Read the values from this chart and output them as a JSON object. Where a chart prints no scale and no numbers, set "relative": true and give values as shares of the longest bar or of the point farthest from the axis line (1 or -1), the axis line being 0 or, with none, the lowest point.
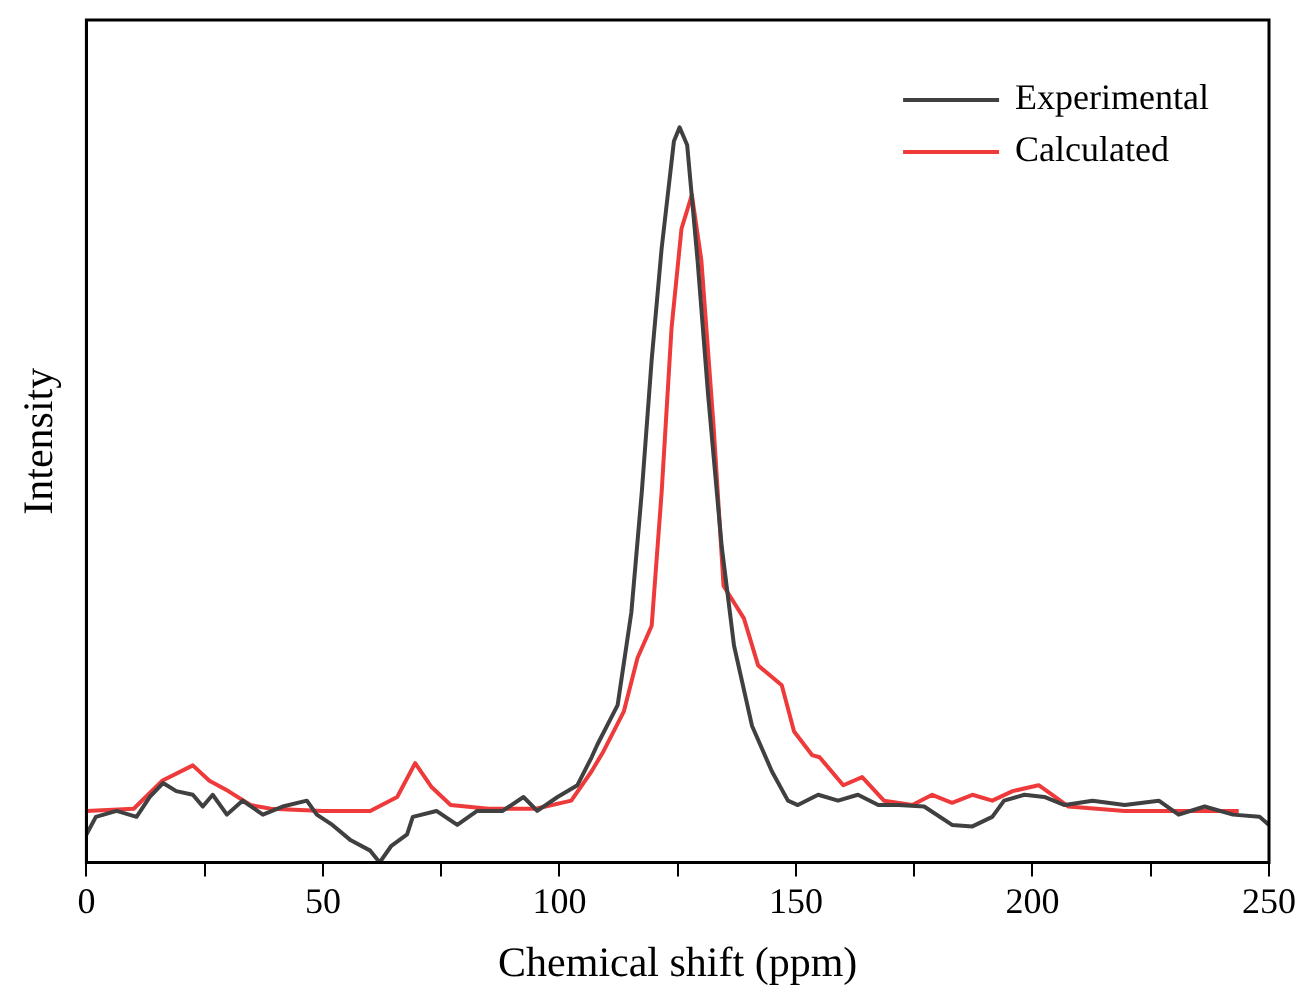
{
  "chart_data": {
    "type": "line",
    "relative": true,
    "xlabel": "Chemical shift (ppm)",
    "ylabel": "Intensity",
    "xlim": [
      0,
      250
    ],
    "xticks": [
      0,
      {
        "value": 25,
        "label": null
      },
      50,
      {
        "value": 75,
        "label": null
      },
      100,
      {
        "value": 125,
        "label": null
      },
      150,
      {
        "value": 175,
        "label": null
      },
      200,
      {
        "value": 225,
        "label": null
      },
      250
    ],
    "legend": "top right",
    "grid": false,
    "marker": "none",
    "line_style": "solid",
    "series": [
      {
        "name": "Experimental",
        "color": "#404040",
        "x": [
          0,
          2,
          6.4,
          10.6,
          13.4,
          16.2,
          19,
          22.5,
          24.6,
          26.7,
          29.7,
          33,
          37.3,
          41.5,
          46.6,
          48.7,
          52,
          55.9,
          60,
          62,
          64.4,
          67.8,
          69,
          74,
          78.4,
          82.6,
          88,
          92.4,
          95.3,
          99.6,
          103.8,
          106.8,
          108,
          112.3,
          115.2,
          117.4,
          119.5,
          121.6,
          122.9,
          124.2,
          125.4,
          127,
          129.2,
          131.4,
          134.3,
          136.9,
          140.7,
          144.9,
          148.3,
          150.4,
          154.7,
          158.9,
          163.1,
          167.4,
          171.6,
          177.1,
          183,
          187.3,
          191.5,
          194,
          198.3,
          202.5,
          206.8,
          212.7,
          219.5,
          226.7,
          230.9,
          236.4,
          242.4,
          248,
          250
        ],
        "values": [
          0.038,
          0.062,
          0.07,
          0.062,
          0.089,
          0.108,
          0.097,
          0.092,
          0.076,
          0.092,
          0.065,
          0.084,
          0.065,
          0.076,
          0.084,
          0.065,
          0.051,
          0.03,
          0.016,
          0,
          0.022,
          0.038,
          0.062,
          0.07,
          0.051,
          0.07,
          0.07,
          0.089,
          0.07,
          0.089,
          0.105,
          0.143,
          0.16,
          0.214,
          0.34,
          0.503,
          0.684,
          0.835,
          0.908,
          0.981,
          1,
          0.976,
          0.819,
          0.638,
          0.43,
          0.295,
          0.186,
          0.124,
          0.084,
          0.078,
          0.092,
          0.084,
          0.092,
          0.078,
          0.078,
          0.076,
          0.051,
          0.049,
          0.062,
          0.084,
          0.092,
          0.089,
          0.078,
          0.084,
          0.078,
          0.084,
          0.065,
          0.076,
          0.065,
          0.062,
          0.051
        ]
      },
      {
        "name": "Calculated",
        "color": "#ee3a3a",
        "x": [
          0,
          10,
          16,
          22.5,
          26,
          30,
          34.7,
          39,
          50,
          60,
          65.7,
          69.5,
          72.9,
          77,
          85,
          95,
          102.5,
          106.8,
          109.3,
          113.6,
          116.5,
          119.5,
          121.6,
          123.7,
          125.8,
          128,
          130,
          132.6,
          134.7,
          139,
          142,
          147,
          149.6,
          153.4,
          155,
          160,
          164,
          168.6,
          174.6,
          178.8,
          183,
          187.3,
          191.5,
          195.8,
          201.3,
          204.2,
          207.6,
          219.5,
          243.6
        ],
        "values": [
          0.07,
          0.073,
          0.111,
          0.132,
          0.111,
          0.097,
          0.078,
          0.073,
          0.07,
          0.07,
          0.089,
          0.135,
          0.103,
          0.078,
          0.073,
          0.073,
          0.084,
          0.124,
          0.151,
          0.205,
          0.278,
          0.322,
          0.503,
          0.727,
          0.862,
          0.908,
          0.819,
          0.592,
          0.376,
          0.332,
          0.268,
          0.241,
          0.178,
          0.146,
          0.143,
          0.105,
          0.116,
          0.084,
          0.078,
          0.092,
          0.081,
          0.092,
          0.084,
          0.097,
          0.105,
          0.092,
          0.076,
          0.07,
          0.07
        ]
      }
    ]
  }
}
